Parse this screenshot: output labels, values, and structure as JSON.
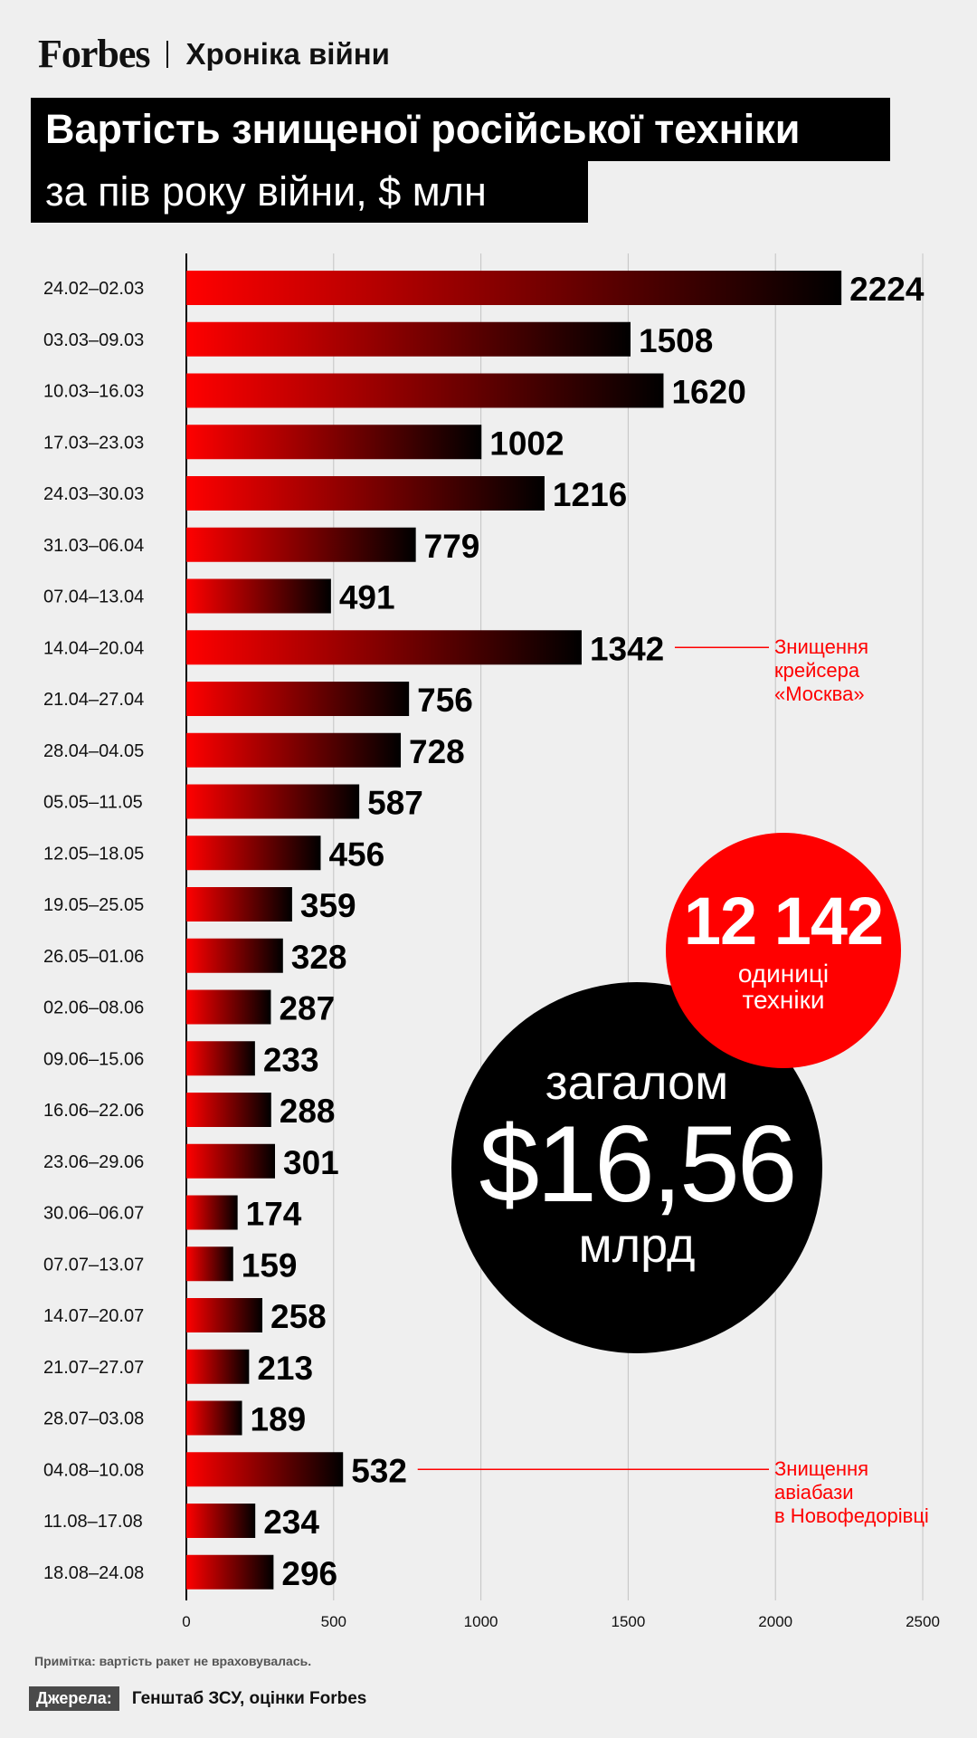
{
  "header": {
    "brand": "Forbes",
    "section": "Хроніка війни",
    "title_line1": "Вартість знищеної російської техніки",
    "title_line2": "за пів року війни, $ млн"
  },
  "chart_data": {
    "type": "bar",
    "orientation": "horizontal",
    "title": "Вартість знищеної російської техніки за пів року війни, $ млн",
    "categories": [
      "24.02–02.03",
      "03.03–09.03",
      "10.03–16.03",
      "17.03–23.03",
      "24.03–30.03",
      "31.03–06.04",
      "07.04–13.04",
      "14.04–20.04",
      "21.04–27.04",
      "28.04–04.05",
      "05.05–11.05",
      "12.05–18.05",
      "19.05–25.05",
      "26.05–01.06",
      "02.06–08.06",
      "09.06–15.06",
      "16.06–22.06",
      "23.06–29.06",
      "30.06–06.07",
      "07.07–13.07",
      "14.07–20.07",
      "21.07–27.07",
      "28.07–03.08",
      "04.08–10.08",
      "11.08–17.08",
      "18.08–24.08"
    ],
    "values": [
      2224,
      1508,
      1620,
      1002,
      1216,
      779,
      491,
      1342,
      756,
      728,
      587,
      456,
      359,
      328,
      287,
      233,
      288,
      301,
      174,
      159,
      258,
      213,
      189,
      532,
      234,
      296
    ],
    "xlim": [
      0,
      2500
    ],
    "xticks": [
      0,
      500,
      1000,
      1500,
      2000,
      2500
    ],
    "grid": true,
    "colors": {
      "bar_start": "#ff0000",
      "bar_end": "#000000",
      "accent": "#ff0000"
    },
    "annotations": [
      {
        "category": "14.04–20.04",
        "lines": [
          "Знищення",
          "крейсера",
          "«Москва»"
        ]
      },
      {
        "category": "04.08–10.08",
        "lines": [
          "Знищення",
          "авіабази",
          "в Новофедорівці"
        ]
      }
    ]
  },
  "callouts": {
    "total_prefix": "загалом",
    "total_value": "$16,56",
    "total_unit": "млрд",
    "units_value": "12 142",
    "units_line1": "одиниці",
    "units_line2": "техніки"
  },
  "footer": {
    "note": "Примітка: вартість ракет не враховувалась.",
    "sources_label": "Джерела:",
    "sources_value": "Генштаб ЗСУ, оцінки Forbes"
  }
}
